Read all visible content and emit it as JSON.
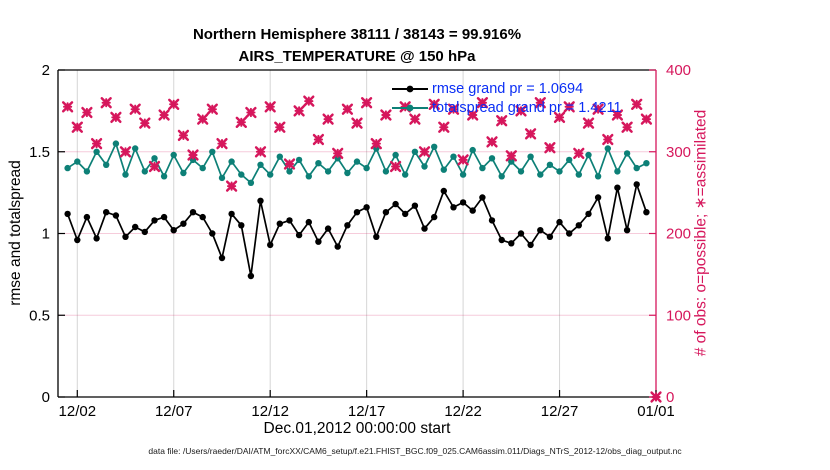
{
  "chart_data": {
    "type": "line",
    "title_line1": "Northern Hemisphere 38111 / 38143 = 99.916%",
    "title_line2": "AIRS_TEMPERATURE @ 150 hPa",
    "xlabel": "Dec.01,2012 00:00:00 start",
    "ylabel_left": "rmse and totalspread",
    "ylabel_right": "# of obs: o=possible; ∗=assimilated",
    "footer": "data file: /Users/raeder/DAI/ATM_forcXX/CAM6_setup/f.e21.FHIST_BGC.f09_025.CAM6assim.011/Diags_NTrS_2012-12/obs_diag_output.nc",
    "x_axis": {
      "range_days": [
        0,
        31
      ],
      "tick_days": [
        1,
        6,
        11,
        16,
        21,
        26,
        31
      ],
      "tick_labels": [
        "12/02",
        "12/07",
        "12/12",
        "12/17",
        "12/22",
        "12/27",
        "01/01"
      ]
    },
    "y_axis_left": {
      "range": [
        0,
        2
      ],
      "tick_values": [
        0,
        0.5,
        1,
        1.5,
        2
      ],
      "tick_labels": [
        "0",
        "0.5",
        "1",
        "1.5",
        "2"
      ],
      "grid_values": [
        0.5,
        1,
        1.5
      ]
    },
    "y_axis_right": {
      "range": [
        0,
        400
      ],
      "tick_values": [
        0,
        100,
        200,
        300,
        400
      ],
      "tick_labels": [
        "0",
        "100",
        "200",
        "300",
        "400"
      ]
    },
    "legend": [
      {
        "label": "rmse grand pr = 1.0694",
        "color": "#000000",
        "marker": "circle"
      },
      {
        "label": "totalspread grand pr = 1.4211",
        "color": "#0d8077",
        "marker": "circle"
      }
    ],
    "colors": {
      "rmse": "#000000",
      "totalspread": "#0d8077",
      "obs_count": "#d6175c",
      "legend_text": "#0a2ef5",
      "grid_vertical": "#d6d6d6",
      "grid_horizontal": "rgba(214,23,92,0.22)"
    },
    "series": [
      {
        "name": "rmse",
        "axis": "left",
        "style": "line-circle",
        "color": "#000000",
        "t_start_days": 0.5,
        "t_step_days": 0.5,
        "values": [
          1.12,
          0.96,
          1.1,
          0.97,
          1.13,
          1.11,
          0.98,
          1.04,
          1.01,
          1.08,
          1.1,
          1.02,
          1.06,
          1.13,
          1.1,
          1.0,
          0.85,
          1.12,
          1.05,
          0.74,
          1.2,
          0.93,
          1.06,
          1.08,
          0.99,
          1.07,
          0.95,
          1.03,
          0.92,
          1.05,
          1.13,
          1.16,
          0.98,
          1.13,
          1.18,
          1.12,
          1.17,
          1.03,
          1.1,
          1.26,
          1.16,
          1.19,
          1.14,
          1.22,
          1.08,
          0.96,
          0.94,
          1.0,
          0.93,
          1.02,
          0.98,
          1.07,
          1.0,
          1.05,
          1.12,
          1.22,
          0.97,
          1.28,
          1.02,
          1.3,
          1.13
        ]
      },
      {
        "name": "totalspread",
        "axis": "left",
        "style": "line-circle",
        "color": "#0d8077",
        "t_start_days": 0.5,
        "t_step_days": 0.5,
        "values": [
          1.4,
          1.44,
          1.38,
          1.5,
          1.42,
          1.55,
          1.36,
          1.52,
          1.38,
          1.46,
          1.35,
          1.48,
          1.37,
          1.45,
          1.4,
          1.5,
          1.34,
          1.44,
          1.36,
          1.31,
          1.42,
          1.36,
          1.47,
          1.38,
          1.45,
          1.35,
          1.43,
          1.38,
          1.46,
          1.37,
          1.44,
          1.4,
          1.52,
          1.38,
          1.48,
          1.36,
          1.5,
          1.41,
          1.53,
          1.39,
          1.47,
          1.36,
          1.51,
          1.4,
          1.46,
          1.35,
          1.44,
          1.38,
          1.47,
          1.36,
          1.42,
          1.38,
          1.45,
          1.36,
          1.48,
          1.35,
          1.52,
          1.38,
          1.49,
          1.4,
          1.43
        ]
      },
      {
        "name": "obs_count_assimilated",
        "axis": "right",
        "style": "asterisk",
        "color": "#d6175c",
        "t_start_days": 0.5,
        "t_step_days": 0.5,
        "values": [
          355,
          330,
          348,
          310,
          360,
          342,
          300,
          352,
          335,
          282,
          345,
          358,
          320,
          296,
          340,
          352,
          310,
          258,
          336,
          348,
          300,
          355,
          330,
          285,
          350,
          362,
          315,
          340,
          298,
          352,
          335,
          360,
          310,
          345,
          282,
          355,
          340,
          300,
          358,
          330,
          352,
          290,
          345,
          360,
          312,
          338,
          295,
          350,
          322,
          360,
          305,
          342,
          355,
          298,
          335,
          352,
          315,
          345,
          330,
          358,
          340,
          0
        ]
      }
    ]
  }
}
